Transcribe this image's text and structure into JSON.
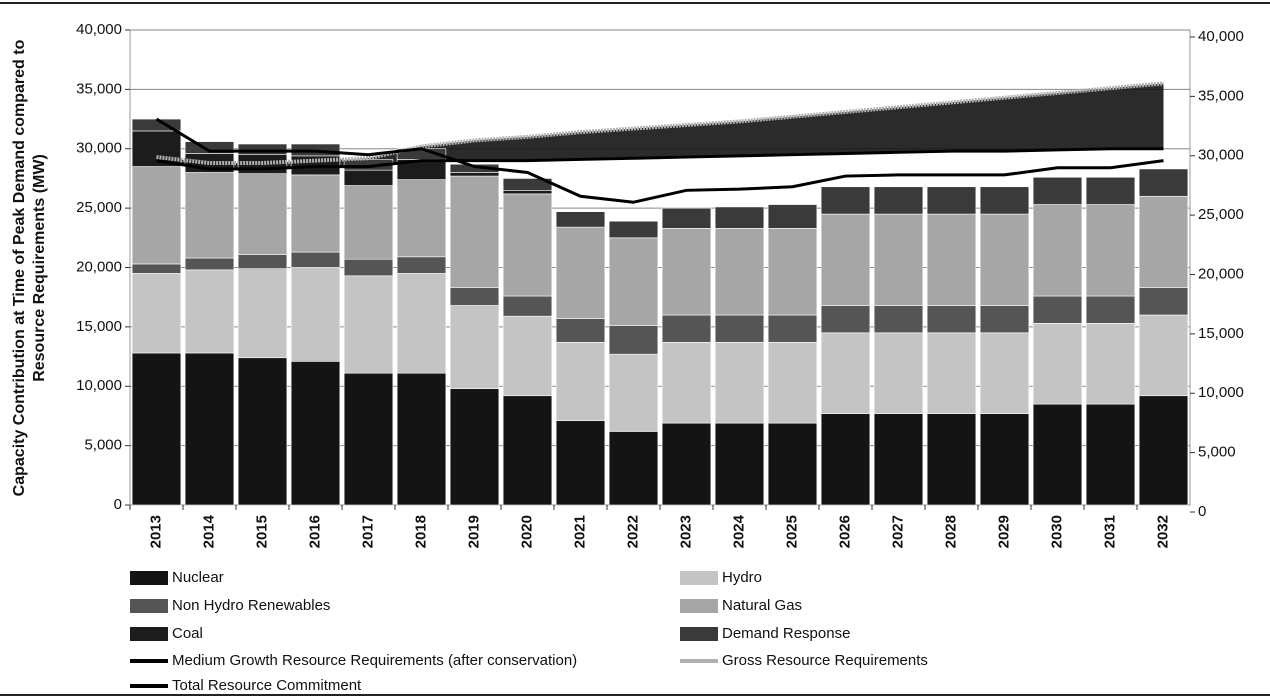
{
  "chart_data": {
    "type": "bar",
    "stacked": true,
    "y_label": [
      "Capacity Contribution at Time of Peak Demand compared to",
      "Resource Requirements (MW)"
    ],
    "categories": [
      "2013",
      "2014",
      "2015",
      "2016",
      "2017",
      "2018",
      "2019",
      "2020",
      "2021",
      "2022",
      "2023",
      "2024",
      "2025",
      "2026",
      "2027",
      "2028",
      "2029",
      "2030",
      "2031",
      "2032"
    ],
    "series": [
      {
        "name": "Nuclear",
        "type": "bar",
        "color": "#141414",
        "values": [
          12800,
          12800,
          12400,
          12100,
          11100,
          11100,
          9800,
          9200,
          7100,
          6200,
          6900,
          6900,
          6900,
          7700,
          7700,
          7700,
          7700,
          8500,
          8500,
          9200
        ]
      },
      {
        "name": "Hydro",
        "type": "bar",
        "color": "#c4c4c4",
        "values": [
          6700,
          7000,
          7500,
          7900,
          8200,
          8400,
          7000,
          6700,
          6600,
          6500,
          6800,
          6800,
          6800,
          6800,
          6800,
          6800,
          6800,
          6800,
          6800,
          6800
        ]
      },
      {
        "name": "Non Hydro Renewables",
        "type": "bar",
        "color": "#555555",
        "values": [
          800,
          1000,
          1200,
          1300,
          1400,
          1400,
          1500,
          1700,
          2000,
          2400,
          2300,
          2300,
          2300,
          2300,
          2300,
          2300,
          2300,
          2300,
          2300,
          2300
        ]
      },
      {
        "name": "Natural Gas",
        "type": "bar",
        "color": "#a6a6a6",
        "values": [
          8200,
          7200,
          6800,
          6500,
          6200,
          6500,
          9400,
          8600,
          7700,
          7400,
          7300,
          7300,
          7300,
          7700,
          7700,
          7700,
          7700,
          7700,
          7700,
          7700
        ]
      },
      {
        "name": "Coal",
        "type": "bar",
        "color": "#1c1c1c",
        "values": [
          3000,
          1600,
          1600,
          1600,
          1300,
          1700,
          300,
          300,
          0,
          0,
          0,
          0,
          0,
          0,
          0,
          0,
          0,
          0,
          0,
          0
        ]
      },
      {
        "name": "Demand Response",
        "type": "bar",
        "color": "#3a3a3a",
        "values": [
          1000,
          1000,
          900,
          1000,
          900,
          900,
          700,
          1000,
          1300,
          1400,
          1700,
          1800,
          2000,
          2300,
          2300,
          2300,
          2300,
          2300,
          2300,
          2300
        ]
      },
      {
        "name": "Medium Growth Resource Requirements (after conservation)",
        "type": "line",
        "color": "#000000",
        "values": [
          29000,
          28300,
          28300,
          28500,
          28500,
          29000,
          29000,
          29000,
          29100,
          29200,
          29300,
          29400,
          29500,
          29600,
          29700,
          29800,
          29800,
          29900,
          30000,
          30000
        ]
      },
      {
        "name": "Gross Resource Requirements",
        "type": "line",
        "color": "#b0b0b0",
        "values": [
          29300,
          28800,
          28800,
          29000,
          29200,
          30200,
          30700,
          31000,
          31400,
          31700,
          32000,
          32300,
          32700,
          33100,
          33500,
          33900,
          34300,
          34700,
          35100,
          35500
        ]
      },
      {
        "name": "Total Resource Commitment",
        "type": "line",
        "color": "#000000",
        "values": [
          32500,
          29800,
          29800,
          29800,
          29500,
          30000,
          28500,
          28000,
          26000,
          25500,
          26500,
          26600,
          26800,
          27700,
          27800,
          27800,
          27800,
          28400,
          28400,
          29000
        ]
      }
    ],
    "ylim": [
      0,
      40000
    ],
    "yticks": [
      0,
      {
        "value": 5000,
        "label": "5,000"
      },
      {
        "value": 10000,
        "label": "10,000"
      },
      {
        "value": 15000,
        "label": "15,000"
      },
      {
        "value": 20000,
        "label": "20,000"
      },
      {
        "value": 25000,
        "label": "25,000"
      },
      {
        "value": 30000,
        "label": "30,000"
      },
      {
        "value": 35000,
        "label": "35,000"
      },
      {
        "value": 40000,
        "label": "40,000"
      }
    ],
    "y2lim": [
      0,
      40000
    ],
    "y2ticks": [
      0,
      {
        "value": 5000,
        "label": "5,000"
      },
      {
        "value": 10000,
        "label": "10,000"
      },
      {
        "value": 15000,
        "label": "15,000"
      },
      {
        "value": 20000,
        "label": "20,000"
      },
      {
        "value": 25000,
        "label": "25,000"
      },
      {
        "value": 30000,
        "label": "30,000"
      },
      {
        "value": 35000,
        "label": "35,000"
      },
      {
        "value": 40000,
        "label": "40,000"
      }
    ],
    "grid": true,
    "legend": "bottom"
  }
}
